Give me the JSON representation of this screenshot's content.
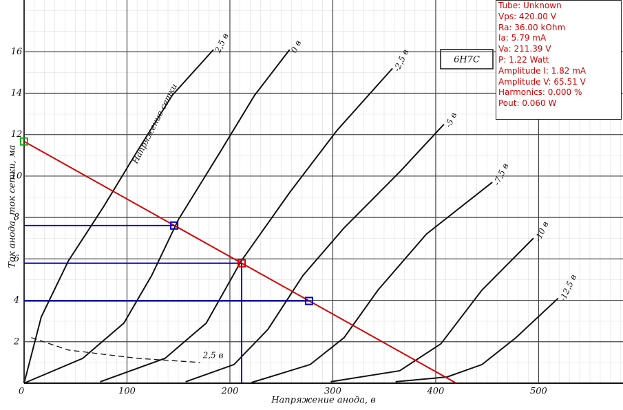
{
  "chart_data": {
    "type": "line",
    "title": "6Н7С",
    "x_label": "Напряжение анода, в",
    "y_label": "Ток анода, ток сетки, ма",
    "curve_family_label": "Напряжение сетки",
    "xlim": [
      0,
      582
    ],
    "ylim": [
      0,
      18.5
    ],
    "xticks": [
      0,
      100,
      200,
      300,
      400,
      500
    ],
    "yticks": [
      2,
      4,
      6,
      8,
      10,
      12,
      14,
      16
    ],
    "grid": true,
    "series": [
      {
        "name": "2,5 в",
        "color": "#111111",
        "x": [
          0,
          16.7,
          43,
          77,
          110,
          144,
          184
        ],
        "values": [
          0,
          3.2,
          5.9,
          8.5,
          11.2,
          13.9,
          16.1
        ]
      },
      {
        "name": "0 в",
        "color": "#111111",
        "x": [
          0,
          57,
          97,
          124,
          150,
          191,
          224,
          258
        ],
        "values": [
          0,
          1.2,
          2.9,
          5.2,
          7.9,
          11.2,
          13.9,
          16.1
        ]
      },
      {
        "name": "-2,5 в",
        "color": "#111111",
        "x": [
          74,
          137,
          177,
          211,
          258,
          304,
          358
        ],
        "values": [
          0.07,
          1.2,
          2.9,
          5.9,
          9.2,
          12.2,
          15.2
        ]
      },
      {
        "name": "-5 в",
        "color": "#111111",
        "x": [
          157,
          204,
          237,
          271,
          311,
          365,
          408
        ],
        "values": [
          0.07,
          0.9,
          2.6,
          5.2,
          7.5,
          10.2,
          12.5
        ]
      },
      {
        "name": "-7,5 в",
        "color": "#111111",
        "x": [
          221,
          278,
          311,
          344,
          391,
          455
        ],
        "values": [
          0.03,
          0.9,
          2.2,
          4.5,
          7.2,
          9.7
        ]
      },
      {
        "name": "-10 в",
        "color": "#111111",
        "x": [
          298,
          365,
          405,
          445,
          495
        ],
        "values": [
          0.07,
          0.6,
          1.9,
          4.5,
          7.0
        ]
      },
      {
        "name": "-12,5 в",
        "color": "#111111",
        "x": [
          361,
          411,
          445,
          478,
          519
        ],
        "values": [
          0.07,
          0.3,
          0.9,
          2.2,
          4.1
        ]
      },
      {
        "name": "2,5 в",
        "color": "#111111",
        "dashed": true,
        "x": [
          7,
          43,
          110,
          171
        ],
        "values": [
          2.2,
          1.6,
          1.2,
          1.0
        ]
      }
    ],
    "load_line": {
      "color": "#d40000",
      "x": [
        0,
        420
      ],
      "values": [
        11.67,
        0
      ]
    },
    "operating_point": {
      "color": "#d40000",
      "x": 211.39,
      "value": 5.79
    },
    "swing_points": {
      "color": "#0000cc",
      "x": [
        145.88,
        276.9
      ],
      "values": [
        7.61,
        3.97
      ]
    },
    "supply_point": {
      "color": "#00b000",
      "x": 0,
      "value": 11.67
    }
  },
  "info_panel": {
    "lines": [
      "Tube: Unknown",
      "Vps: 420.00 V",
      "Ra: 36.00 kOhm",
      "Ia: 5.79 mA",
      "Va: 211.39 V",
      "P: 1.22 Watt",
      "Amplitude I: 1.82 mA",
      "Amplitude V: 65.51 V",
      "Harmonics: 0.000 %",
      "Pout: 0.060 W"
    ]
  }
}
